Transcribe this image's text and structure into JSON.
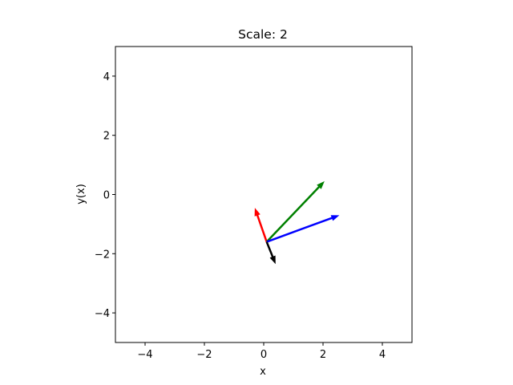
{
  "chart_data": {
    "type": "quiver",
    "title": "Scale: 2",
    "xlabel": "x",
    "ylabel": "y(x)",
    "xlim": [
      -5,
      5
    ],
    "ylim": [
      -5,
      5
    ],
    "xticks": [
      -4,
      -2,
      0,
      2,
      4
    ],
    "yticks": [
      -4,
      -2,
      0,
      2,
      4
    ],
    "xtick_labels": [
      "−4",
      "−2",
      "0",
      "2",
      "4"
    ],
    "ytick_labels": [
      "−4",
      "−2",
      "0",
      "2",
      "4"
    ],
    "grid": false,
    "origin": [
      0.1,
      -1.6
    ],
    "vectors": [
      {
        "color": "#ff0000",
        "dx": -0.4,
        "dy": 1.15
      },
      {
        "color": "#008000",
        "dx": 1.95,
        "dy": 2.05
      },
      {
        "color": "#0000ff",
        "dx": 2.45,
        "dy": 0.9
      },
      {
        "color": "#000000",
        "dx": 0.3,
        "dy": -0.75
      }
    ]
  }
}
